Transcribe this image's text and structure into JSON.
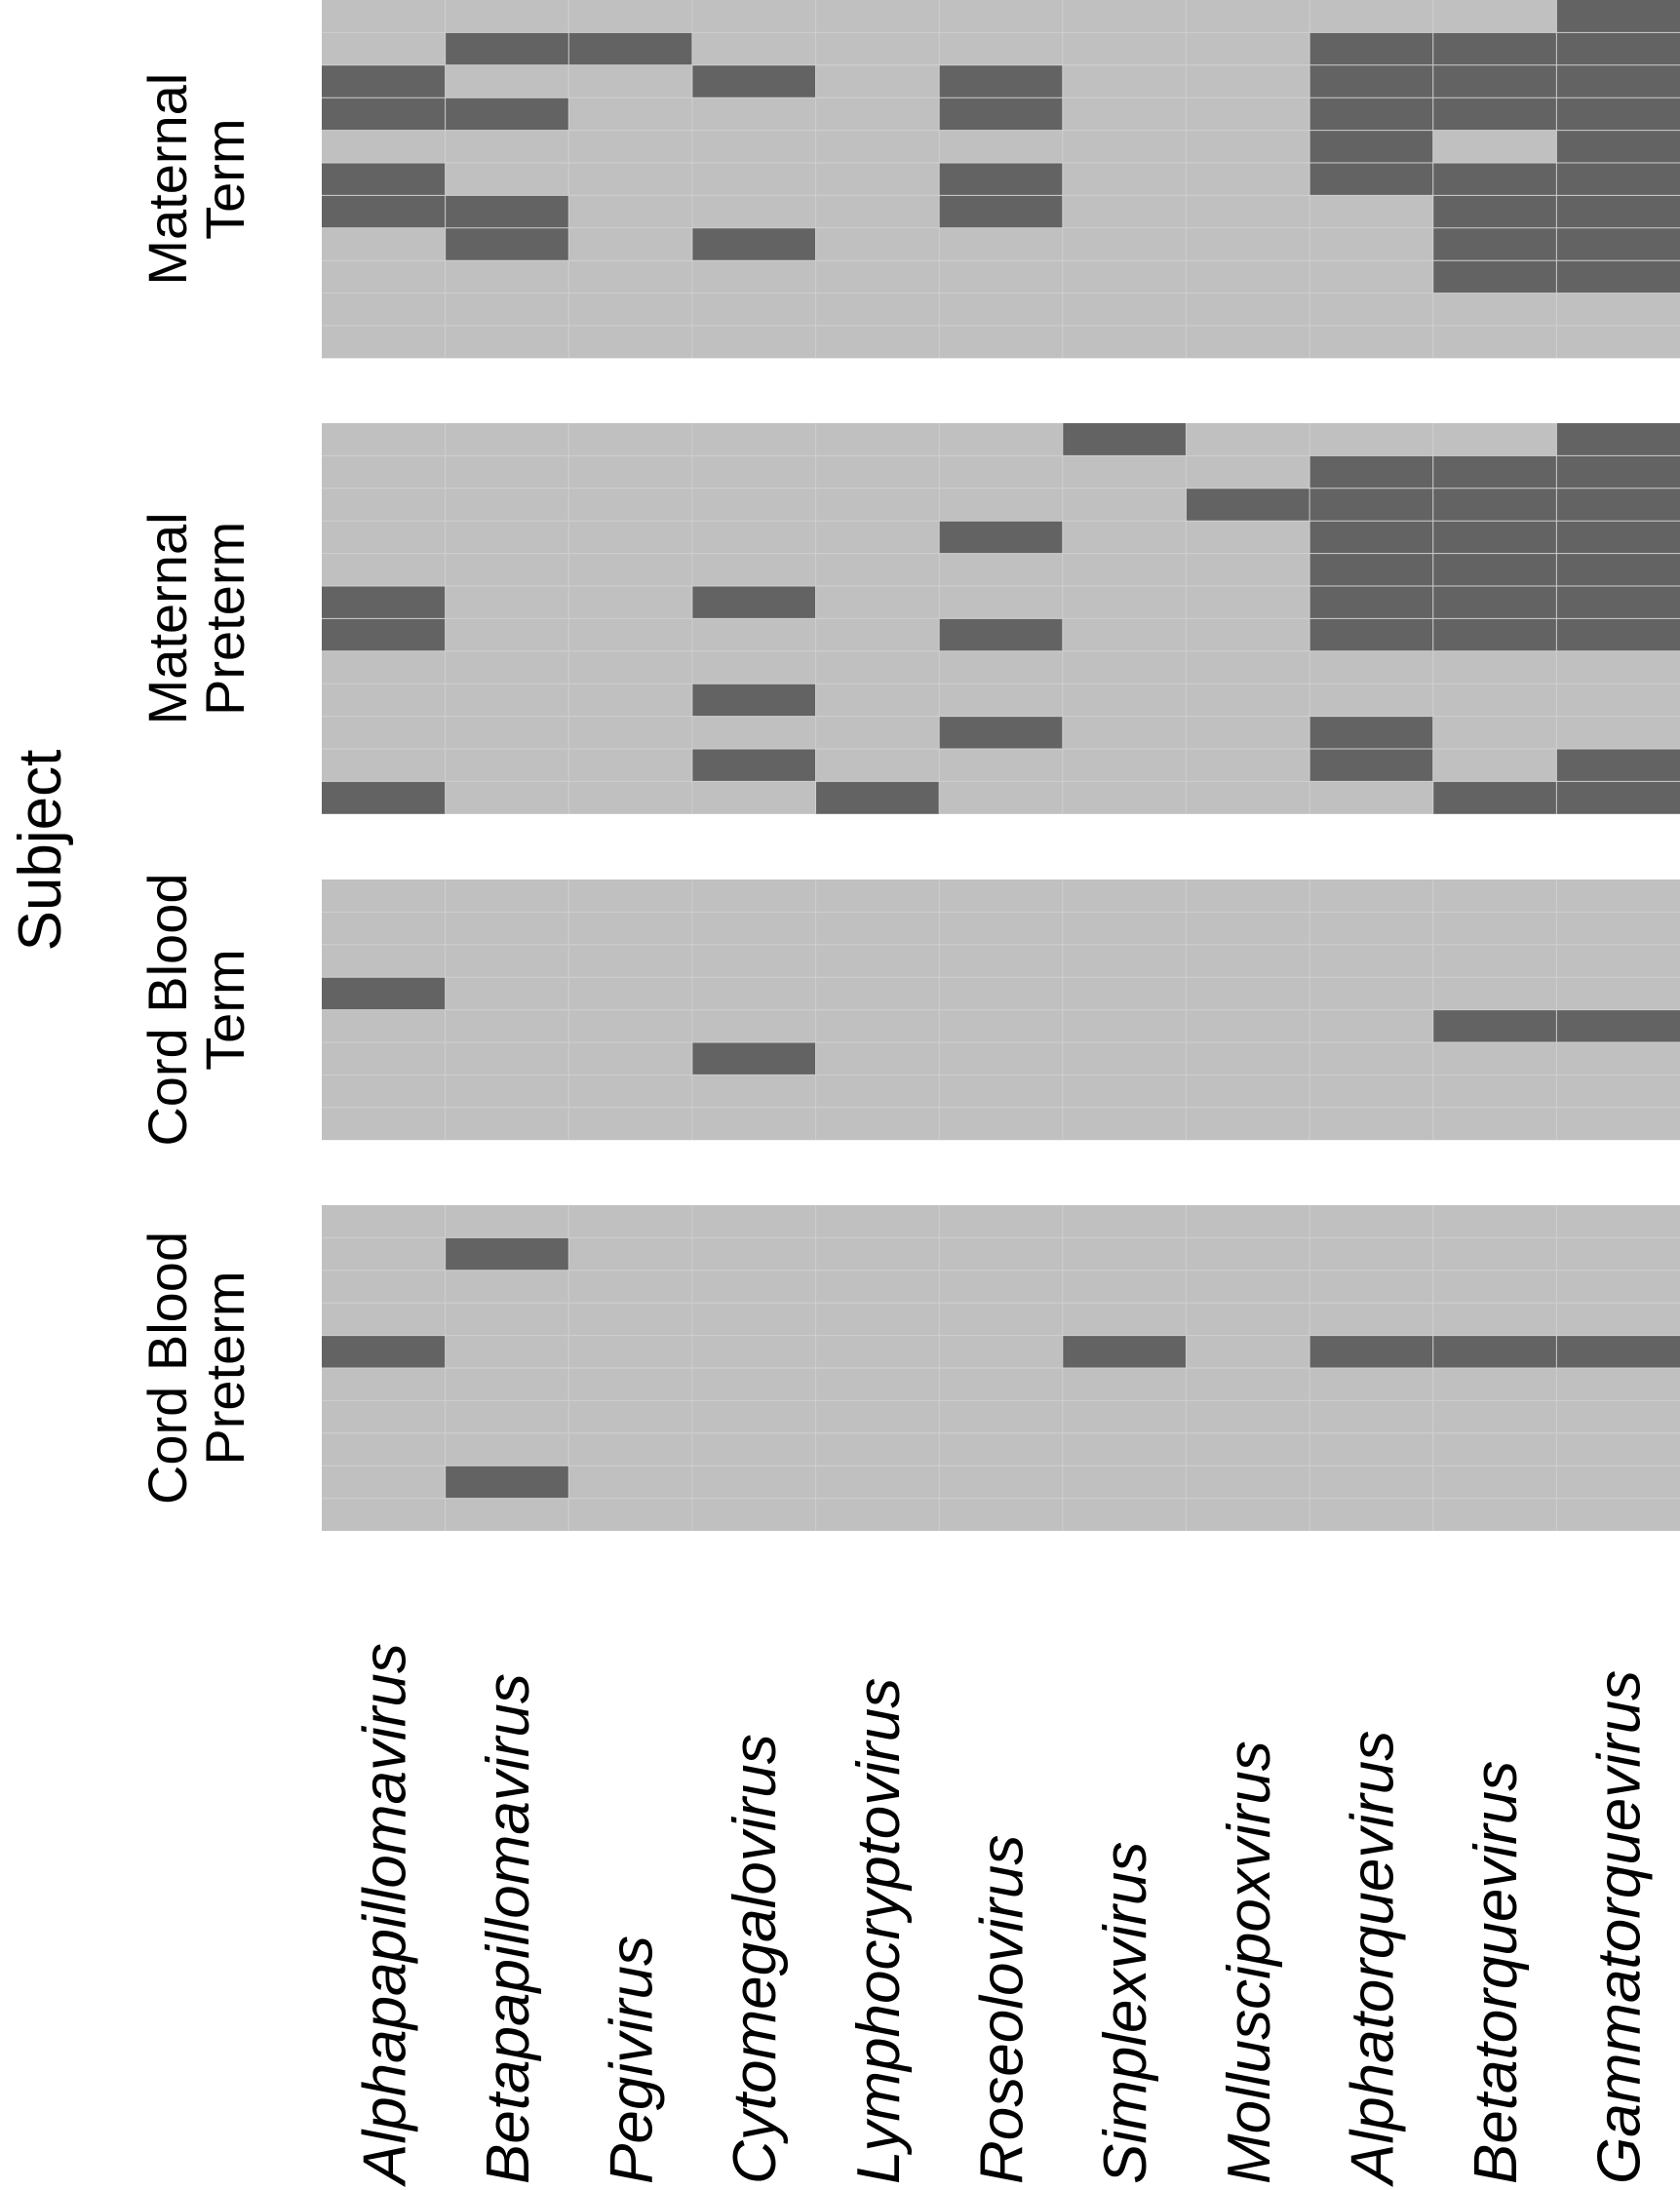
{
  "chart_data": {
    "type": "heatmap",
    "ylabel": "Subject",
    "xlabel": "",
    "colors": {
      "absent": "#c0c0c0",
      "present": "#636363",
      "gridline": "#cfcfcf",
      "background": "#ffffff"
    },
    "columns": [
      "Alphapapillomavirus",
      "Betapapillomavirus",
      "Pegivirus",
      "Cytomegalovirus",
      "Lymphocryptovirus",
      "Roseolovirus",
      "Simplexvirus",
      "Molluscipoxvirus",
      "Alphatorquevirus",
      "Betatorquevirus",
      "Gammatorquevirus"
    ],
    "panels": [
      {
        "label_lines": [
          "Maternal",
          "Term"
        ],
        "rows": [
          [
            0,
            0,
            0,
            0,
            0,
            0,
            0,
            0,
            0,
            0,
            1
          ],
          [
            0,
            1,
            1,
            0,
            0,
            0,
            0,
            0,
            1,
            1,
            1
          ],
          [
            1,
            0,
            0,
            1,
            0,
            1,
            0,
            0,
            1,
            1,
            1
          ],
          [
            1,
            1,
            0,
            0,
            0,
            1,
            0,
            0,
            1,
            1,
            1
          ],
          [
            0,
            0,
            0,
            0,
            0,
            0,
            0,
            0,
            1,
            0,
            1
          ],
          [
            1,
            0,
            0,
            0,
            0,
            1,
            0,
            0,
            1,
            1,
            1
          ],
          [
            1,
            1,
            0,
            0,
            0,
            1,
            0,
            0,
            0,
            1,
            1
          ],
          [
            0,
            1,
            0,
            1,
            0,
            0,
            0,
            0,
            0,
            1,
            1
          ],
          [
            0,
            0,
            0,
            0,
            0,
            0,
            0,
            0,
            0,
            1,
            1
          ],
          [
            0,
            0,
            0,
            0,
            0,
            0,
            0,
            0,
            0,
            0,
            0
          ],
          [
            0,
            0,
            0,
            0,
            0,
            0,
            0,
            0,
            0,
            0,
            0
          ]
        ]
      },
      {
        "label_lines": [
          "Maternal",
          "Preterm"
        ],
        "rows": [
          [
            0,
            0,
            0,
            0,
            0,
            0,
            1,
            0,
            0,
            0,
            1
          ],
          [
            0,
            0,
            0,
            0,
            0,
            0,
            0,
            0,
            1,
            1,
            1
          ],
          [
            0,
            0,
            0,
            0,
            0,
            0,
            0,
            1,
            1,
            1,
            1
          ],
          [
            0,
            0,
            0,
            0,
            0,
            1,
            0,
            0,
            1,
            1,
            1
          ],
          [
            0,
            0,
            0,
            0,
            0,
            0,
            0,
            0,
            1,
            1,
            1
          ],
          [
            1,
            0,
            0,
            1,
            0,
            0,
            0,
            0,
            1,
            1,
            1
          ],
          [
            1,
            0,
            0,
            0,
            0,
            1,
            0,
            0,
            1,
            1,
            1
          ],
          [
            0,
            0,
            0,
            0,
            0,
            0,
            0,
            0,
            0,
            0,
            0
          ],
          [
            0,
            0,
            0,
            1,
            0,
            0,
            0,
            0,
            0,
            0,
            0
          ],
          [
            0,
            0,
            0,
            0,
            0,
            1,
            0,
            0,
            1,
            0,
            0
          ],
          [
            0,
            0,
            0,
            1,
            0,
            0,
            0,
            0,
            1,
            0,
            1
          ],
          [
            1,
            0,
            0,
            0,
            1,
            0,
            0,
            0,
            0,
            1,
            1
          ]
        ]
      },
      {
        "label_lines": [
          "Cord Blood",
          "Term"
        ],
        "rows": [
          [
            0,
            0,
            0,
            0,
            0,
            0,
            0,
            0,
            0,
            0,
            0
          ],
          [
            0,
            0,
            0,
            0,
            0,
            0,
            0,
            0,
            0,
            0,
            0
          ],
          [
            0,
            0,
            0,
            0,
            0,
            0,
            0,
            0,
            0,
            0,
            0
          ],
          [
            1,
            0,
            0,
            0,
            0,
            0,
            0,
            0,
            0,
            0,
            0
          ],
          [
            0,
            0,
            0,
            0,
            0,
            0,
            0,
            0,
            0,
            1,
            1
          ],
          [
            0,
            0,
            0,
            1,
            0,
            0,
            0,
            0,
            0,
            0,
            0
          ],
          [
            0,
            0,
            0,
            0,
            0,
            0,
            0,
            0,
            0,
            0,
            0
          ],
          [
            0,
            0,
            0,
            0,
            0,
            0,
            0,
            0,
            0,
            0,
            0
          ]
        ]
      },
      {
        "label_lines": [
          "Cord Blood",
          "Preterm"
        ],
        "rows": [
          [
            0,
            0,
            0,
            0,
            0,
            0,
            0,
            0,
            0,
            0,
            0
          ],
          [
            0,
            1,
            0,
            0,
            0,
            0,
            0,
            0,
            0,
            0,
            0
          ],
          [
            0,
            0,
            0,
            0,
            0,
            0,
            0,
            0,
            0,
            0,
            0
          ],
          [
            0,
            0,
            0,
            0,
            0,
            0,
            0,
            0,
            0,
            0,
            0
          ],
          [
            1,
            0,
            0,
            0,
            0,
            0,
            1,
            0,
            1,
            1,
            1
          ],
          [
            0,
            0,
            0,
            0,
            0,
            0,
            0,
            0,
            0,
            0,
            0
          ],
          [
            0,
            0,
            0,
            0,
            0,
            0,
            0,
            0,
            0,
            0,
            0
          ],
          [
            0,
            0,
            0,
            0,
            0,
            0,
            0,
            0,
            0,
            0,
            0
          ],
          [
            0,
            1,
            0,
            0,
            0,
            0,
            0,
            0,
            0,
            0,
            0
          ],
          [
            0,
            0,
            0,
            0,
            0,
            0,
            0,
            0,
            0,
            0,
            0
          ]
        ]
      }
    ]
  }
}
